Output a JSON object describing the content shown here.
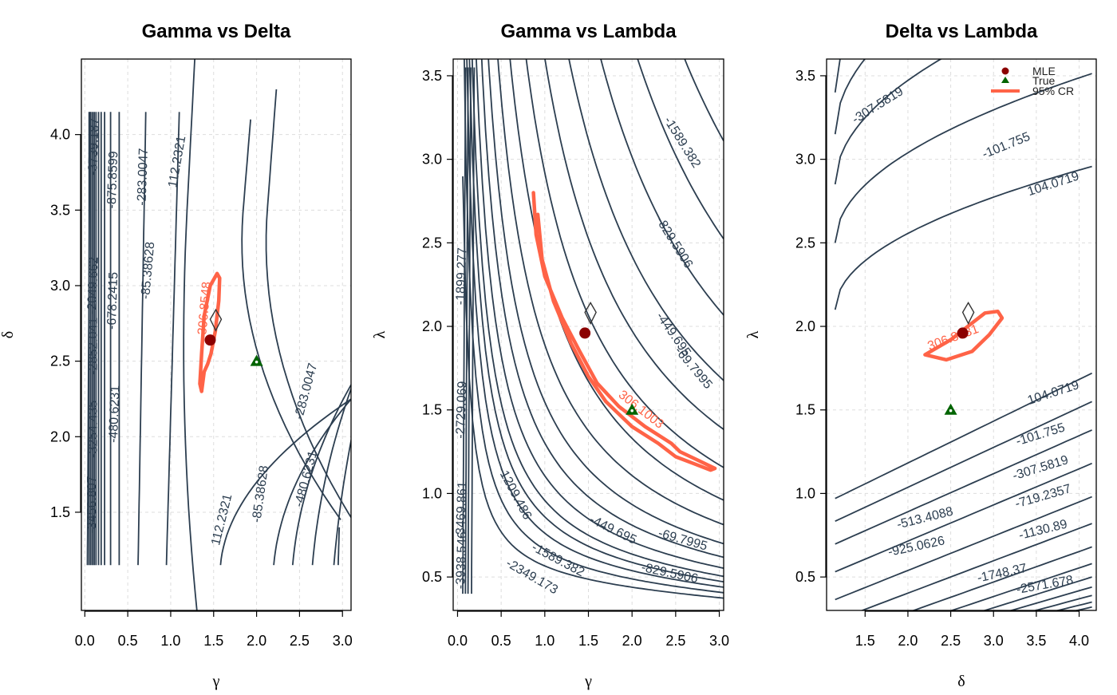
{
  "colors": {
    "contour": "#2c3e50",
    "region": "#ff6347",
    "mle": "#8b0000",
    "true": "#006400",
    "grid": "#dddddd",
    "background": "#ffffff"
  },
  "legend": {
    "items": [
      "MLE",
      "True",
      "95% CR"
    ],
    "placement": "top-right of third panel"
  },
  "chart_data": [
    {
      "type": "contour",
      "title": "Gamma vs Delta",
      "xlabel": "γ",
      "ylabel": "δ",
      "xlim": [
        -0.04,
        3.1
      ],
      "ylim": [
        0.85,
        4.5
      ],
      "xticks": [
        "0.0",
        "0.5",
        "1.0",
        "1.5",
        "2.0",
        "2.5",
        "3.0"
      ],
      "yticks": [
        "1.5",
        "2.0",
        "2.5",
        "3.0",
        "3.5",
        "4.0"
      ],
      "grid": true,
      "mle": [
        1.46,
        2.64
      ],
      "true": [
        2.0,
        2.5
      ],
      "contour_labels": [
        "-3739.187",
        "-875.8599",
        "-283.0047",
        "112.2321",
        "-2049.662",
        "-678.2415",
        "-85.38628",
        "-2852.041",
        "-3254.435",
        "-480.6231",
        "-3456.807",
        "112.2321",
        "-85.38628",
        "-480.6231",
        "-283.0047"
      ],
      "region_label": "306.8548"
    },
    {
      "type": "contour",
      "title": "Gamma vs Lambda",
      "xlabel": "γ",
      "ylabel": "λ",
      "xlim": [
        -0.05,
        3.05
      ],
      "ylim": [
        0.3,
        3.6
      ],
      "xticks": [
        "0.0",
        "0.5",
        "1.0",
        "1.5",
        "2.0",
        "2.5",
        "3.0"
      ],
      "yticks": [
        "0.5",
        "1.0",
        "1.5",
        "2.0",
        "2.5",
        "3.0",
        "3.5"
      ],
      "grid": true,
      "mle": [
        1.46,
        1.96
      ],
      "true": [
        2.0,
        1.5
      ],
      "contour_labels": [
        "-1589.382",
        "-829.5906",
        "-449.695",
        "-69.7995",
        "-1899.277",
        "-2729.069",
        "-3469.861",
        "-1209.486",
        "-3938.546",
        "-1589.382",
        "-2349.173",
        "-449.695",
        "-69.7995",
        "-829.5906"
      ],
      "region_label": "306.1003"
    },
    {
      "type": "contour",
      "title": "Delta vs Lambda",
      "xlabel": "δ",
      "ylabel": "λ",
      "xlim": [
        1.05,
        4.2
      ],
      "ylim": [
        0.3,
        3.6
      ],
      "xticks": [
        "1.5",
        "2.0",
        "2.5",
        "3.0",
        "3.5",
        "4.0"
      ],
      "yticks": [
        "0.5",
        "1.0",
        "1.5",
        "2.0",
        "2.5",
        "3.0",
        "3.5"
      ],
      "grid": true,
      "mle": [
        2.64,
        1.96
      ],
      "true": [
        2.5,
        1.5
      ],
      "contour_labels": [
        "-307.5819",
        "-101.755",
        "104.0719",
        "104.0719",
        "-101.755",
        "-307.5819",
        "-719.2357",
        "-513.4088",
        "-1130.89",
        "-925.0626",
        "-1748.37",
        "-2571.678"
      ],
      "region_label": "306.8831"
    }
  ]
}
